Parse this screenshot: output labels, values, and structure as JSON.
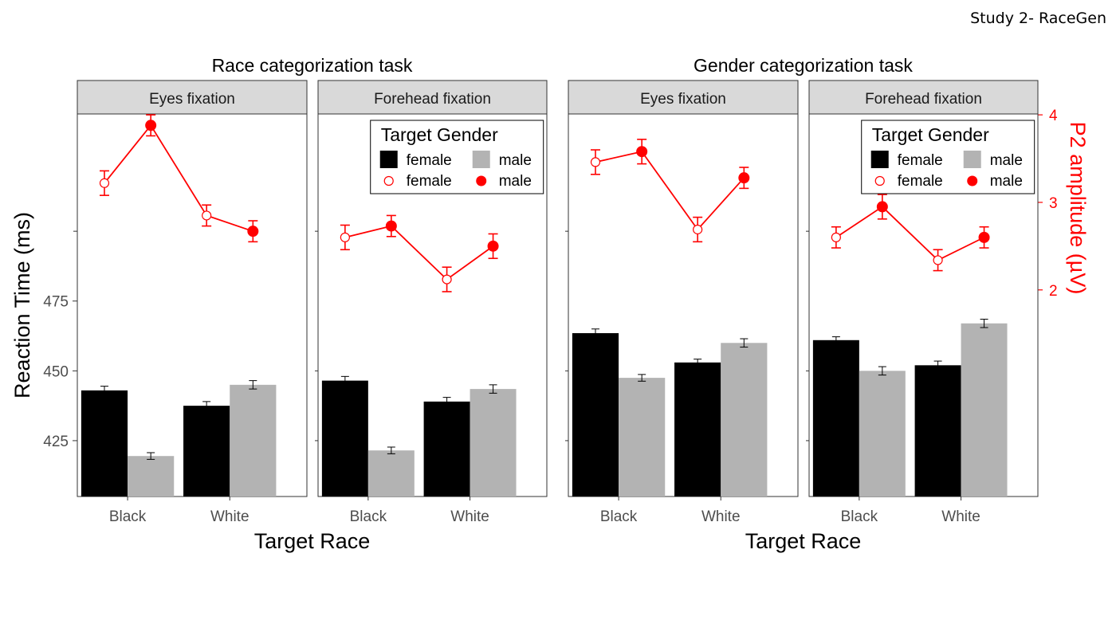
{
  "header": {
    "study_label": "Study 2- RaceGen"
  },
  "chart_data": {
    "type": "bar",
    "groups": [
      {
        "title": "Race categorization task",
        "xlabel": "Target Race"
      },
      {
        "title": "Gender categorization task",
        "xlabel": "Target Race"
      }
    ],
    "categories": [
      "Black",
      "White"
    ],
    "ylabel": "Reaction Time (ms)",
    "ylim": [
      405,
      542
    ],
    "yticks": [
      425,
      450,
      475
    ],
    "y2label": "P2 amplitude (µV)",
    "y2lim": [
      -0.36,
      4.01
    ],
    "y2ticks": [
      2,
      3,
      4
    ],
    "legend": {
      "title": "Target Gender",
      "entries": [
        "female",
        "male",
        "female",
        "male"
      ],
      "placement": "top-right"
    },
    "bar_colors": {
      "female": "#000000",
      "male": "#b3b3b3"
    },
    "line_color": "#ff0000",
    "panels": [
      {
        "group": "Race categorization task",
        "strip": "Eyes fixation",
        "show_legend": false,
        "bars": {
          "female": {
            "values": [
              443,
              437.5
            ],
            "err": [
              1.5,
              1.5
            ]
          },
          "male": {
            "values": [
              419.5,
              445
            ],
            "err": [
              1.2,
              1.5
            ]
          }
        },
        "p2": {
          "female": {
            "values": [
              3.22,
              2.85
            ],
            "err": [
              0.14,
              0.12
            ]
          },
          "male": {
            "values": [
              3.88,
              2.67
            ],
            "err": [
              0.12,
              0.12
            ]
          }
        }
      },
      {
        "group": "Race categorization task",
        "strip": "Forehead fixation",
        "show_legend": true,
        "bars": {
          "female": {
            "values": [
              446.5,
              439
            ],
            "err": [
              1.5,
              1.5
            ]
          },
          "male": {
            "values": [
              421.5,
              443.5
            ],
            "err": [
              1.2,
              1.5
            ]
          }
        },
        "p2": {
          "female": {
            "values": [
              2.6,
              2.12
            ],
            "err": [
              0.14,
              0.14
            ]
          },
          "male": {
            "values": [
              2.73,
              2.5
            ],
            "err": [
              0.12,
              0.14
            ]
          }
        }
      },
      {
        "group": "Gender categorization task",
        "strip": "Eyes fixation",
        "show_legend": false,
        "bars": {
          "female": {
            "values": [
              463.5,
              453
            ],
            "err": [
              1.5,
              1.2
            ]
          },
          "male": {
            "values": [
              447.5,
              460
            ],
            "err": [
              1.2,
              1.5
            ]
          }
        },
        "p2": {
          "female": {
            "values": [
              3.46,
              2.69
            ],
            "err": [
              0.14,
              0.14
            ]
          },
          "male": {
            "values": [
              3.58,
              3.28
            ],
            "err": [
              0.14,
              0.12
            ]
          }
        }
      },
      {
        "group": "Gender categorization task",
        "strip": "Forehead fixation",
        "show_legend": true,
        "bars": {
          "female": {
            "values": [
              461,
              452
            ],
            "err": [
              1.2,
              1.5
            ]
          },
          "male": {
            "values": [
              450,
              467
            ],
            "err": [
              1.5,
              1.5
            ]
          }
        },
        "p2": {
          "female": {
            "values": [
              2.6,
              2.34
            ],
            "err": [
              0.12,
              0.12
            ]
          },
          "male": {
            "values": [
              2.95,
              2.6
            ],
            "err": [
              0.14,
              0.12
            ]
          }
        }
      }
    ]
  }
}
